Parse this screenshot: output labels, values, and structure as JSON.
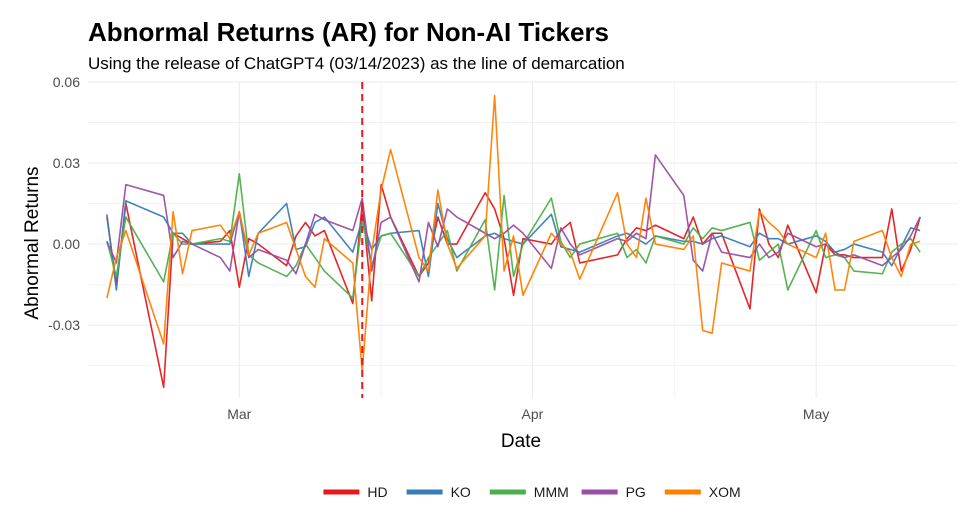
{
  "chart_data": {
    "type": "line",
    "title": "Abnormal Returns (AR) for Non-AI Tickers",
    "subtitle": "Using the release of ChatGPT4 (03/14/2023) as the line of demarcation",
    "xlabel": "Date",
    "ylabel": "Abnormal Returns",
    "x_axis_type": "date",
    "xlim": [
      "2023-02-13",
      "2023-05-16"
    ],
    "ylim": [
      -0.057,
      0.06
    ],
    "x_tick_dates": [
      "2023-03-01",
      "2023-04-01",
      "2023-05-01"
    ],
    "x_tick_labels": [
      "Mar",
      "Apr",
      "May"
    ],
    "y_ticks": [
      -0.03,
      0.0,
      0.03,
      0.06
    ],
    "y_tick_labels": [
      "-0.03",
      "0.00",
      "0.03",
      "0.06"
    ],
    "grid": true,
    "legend_position": "bottom",
    "vline": {
      "date": "2023-03-14",
      "color": "#e41a1c",
      "style": "dashed"
    },
    "dates": [
      "2023-02-15",
      "2023-02-16",
      "2023-02-17",
      "2023-02-21",
      "2023-02-22",
      "2023-02-23",
      "2023-02-24",
      "2023-02-27",
      "2023-02-28",
      "2023-03-01",
      "2023-03-02",
      "2023-03-03",
      "2023-03-06",
      "2023-03-07",
      "2023-03-08",
      "2023-03-09",
      "2023-03-10",
      "2023-03-13",
      "2023-03-14",
      "2023-03-15",
      "2023-03-16",
      "2023-03-17",
      "2023-03-20",
      "2023-03-21",
      "2023-03-22",
      "2023-03-23",
      "2023-03-24",
      "2023-03-27",
      "2023-03-28",
      "2023-03-29",
      "2023-03-30",
      "2023-03-31",
      "2023-04-03",
      "2023-04-04",
      "2023-04-05",
      "2023-04-06",
      "2023-04-10",
      "2023-04-11",
      "2023-04-12",
      "2023-04-13",
      "2023-04-14",
      "2023-04-17",
      "2023-04-18",
      "2023-04-19",
      "2023-04-20",
      "2023-04-21",
      "2023-04-24",
      "2023-04-25",
      "2023-04-26",
      "2023-04-27",
      "2023-04-28",
      "2023-05-01",
      "2023-05-02",
      "2023-05-03",
      "2023-05-04",
      "2023-05-05",
      "2023-05-08",
      "2023-05-09",
      "2023-05-10",
      "2023-05-11",
      "2023-05-12"
    ],
    "series": [
      {
        "name": "HD",
        "color": "#e41a1c",
        "values": [
          0.01,
          -0.015,
          0.015,
          -0.053,
          0.004,
          0.002,
          0.0,
          0.001,
          0.005,
          -0.016,
          0.002,
          0.0,
          -0.008,
          0.003,
          0.008,
          0.003,
          0.005,
          -0.022,
          0.015,
          -0.021,
          0.022,
          0.01,
          -0.012,
          -0.007,
          0.01,
          0.0,
          0.0,
          0.019,
          0.013,
          0.002,
          -0.019,
          0.002,
          0.0,
          0.005,
          0.008,
          -0.007,
          -0.004,
          0.002,
          0.006,
          0.005,
          0.007,
          0.002,
          0.01,
          0.0,
          0.004,
          0.004,
          -0.024,
          0.013,
          0.0,
          -0.005,
          0.007,
          -0.018,
          0.0,
          -0.004,
          -0.004,
          -0.005,
          -0.005,
          0.013,
          -0.01,
          -0.002,
          0.01
        ]
      },
      {
        "name": "KO",
        "color": "#377eb8",
        "values": [
          0.011,
          -0.017,
          0.016,
          0.01,
          0.004,
          0.004,
          0.0,
          0.0,
          0.0,
          0.012,
          -0.012,
          0.004,
          0.015,
          -0.002,
          -0.001,
          0.008,
          0.01,
          -0.003,
          0.009,
          -0.002,
          0.003,
          0.004,
          0.005,
          -0.012,
          0.015,
          0.002,
          -0.005,
          0.003,
          0.004,
          0.002,
          0.001,
          0.0,
          0.011,
          -0.001,
          -0.002,
          -0.003,
          0.003,
          0.004,
          0.002,
          0.0,
          0.003,
          0.001,
          0.001,
          0.0,
          0.002,
          0.003,
          -0.001,
          0.004,
          0.002,
          0.002,
          0.0,
          0.003,
          0.001,
          -0.003,
          -0.002,
          0.0,
          -0.003,
          -0.008,
          -0.001,
          0.006,
          0.005
        ]
      },
      {
        "name": "MMM",
        "color": "#4daf4a",
        "values": [
          0.001,
          -0.012,
          0.01,
          -0.014,
          0.004,
          0.0,
          0.0,
          0.002,
          0.001,
          0.026,
          -0.004,
          -0.007,
          -0.012,
          -0.008,
          0.0,
          -0.005,
          -0.01,
          -0.02,
          0.009,
          -0.008,
          0.003,
          0.004,
          -0.012,
          -0.005,
          0.0,
          0.005,
          -0.01,
          0.009,
          -0.017,
          0.018,
          -0.012,
          0.0,
          0.017,
          0.001,
          -0.005,
          0.0,
          0.004,
          -0.005,
          -0.002,
          -0.007,
          0.003,
          0.0,
          0.006,
          0.002,
          0.006,
          0.005,
          0.008,
          -0.006,
          -0.003,
          0.0,
          -0.017,
          0.005,
          -0.005,
          -0.004,
          -0.005,
          -0.01,
          -0.011,
          -0.003,
          0.0,
          0.002,
          -0.003
        ]
      },
      {
        "name": "PG",
        "color": "#984ea3",
        "values": [
          0.001,
          -0.007,
          0.022,
          0.018,
          -0.005,
          0.001,
          0.0,
          -0.005,
          -0.01,
          0.012,
          -0.005,
          -0.002,
          -0.006,
          -0.011,
          0.0,
          0.011,
          0.009,
          0.005,
          0.017,
          -0.01,
          0.008,
          0.01,
          -0.014,
          0.008,
          -0.001,
          0.013,
          0.01,
          0.004,
          0.002,
          0.004,
          0.007,
          0.004,
          -0.009,
          0.006,
          0.0,
          -0.004,
          0.002,
          0.001,
          0.004,
          0.002,
          0.033,
          0.018,
          -0.006,
          -0.01,
          0.004,
          -0.003,
          -0.005,
          0.0,
          -0.005,
          -0.003,
          0.004,
          -0.001,
          0.0,
          -0.003,
          -0.005,
          -0.004,
          -0.008,
          -0.005,
          -0.002,
          0.003,
          0.01
        ]
      },
      {
        "name": "XOM",
        "color": "#ff7f00",
        "values": [
          -0.02,
          -0.005,
          0.005,
          -0.037,
          0.012,
          -0.011,
          0.005,
          0.007,
          0.002,
          0.012,
          -0.004,
          0.004,
          0.008,
          -0.002,
          -0.012,
          -0.016,
          0.002,
          -0.007,
          -0.047,
          -0.003,
          0.02,
          0.035,
          -0.005,
          -0.01,
          0.02,
          0.0,
          -0.009,
          0.003,
          0.055,
          -0.01,
          0.003,
          -0.019,
          0.004,
          0.0,
          -0.003,
          -0.013,
          0.019,
          0.0,
          -0.005,
          0.017,
          0.0,
          -0.002,
          0.003,
          -0.032,
          -0.033,
          -0.007,
          -0.01,
          0.012,
          0.008,
          0.005,
          0.0,
          -0.005,
          0.004,
          -0.017,
          -0.017,
          0.001,
          0.005,
          -0.005,
          -0.012,
          0.0,
          0.001
        ]
      }
    ]
  }
}
